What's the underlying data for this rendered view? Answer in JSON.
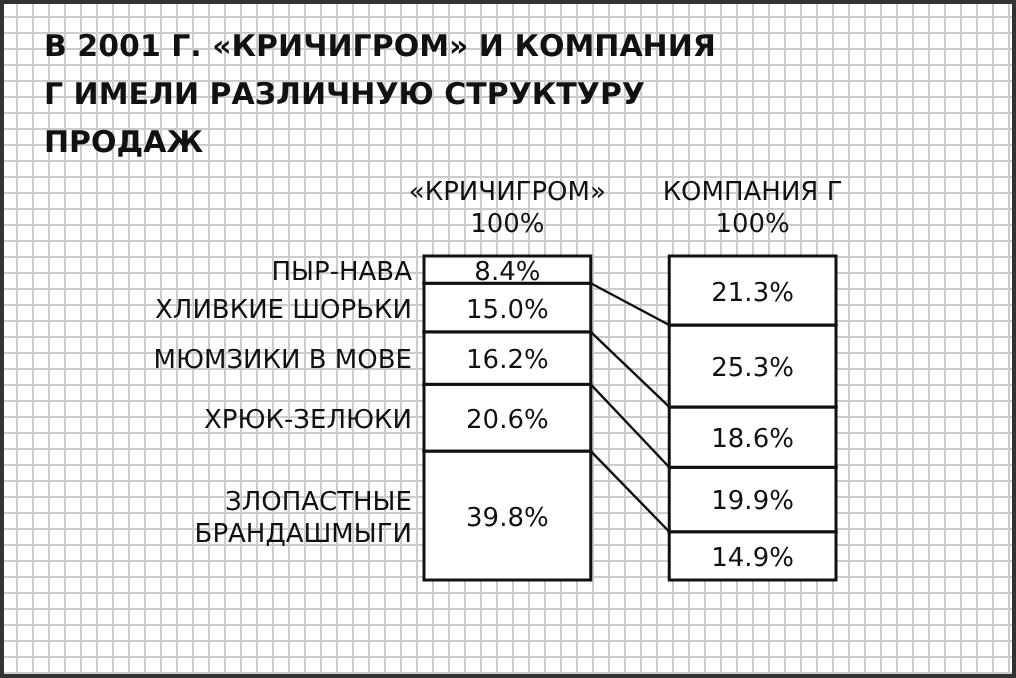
{
  "chart_data": {
    "type": "bar",
    "title": "В 2001 Г. «КРИЧИГРОМ» И КОМПАНИЯ Г ИМЕЛИ РАЗЛИЧНУЮ СТРУКТУРУ ПРОДАЖ",
    "categories": [
      "«КРИЧИГРОМ»",
      "КОМПАНИЯ Г"
    ],
    "stacked": true,
    "legend": "left",
    "totals": [
      "100%",
      "100%"
    ],
    "series": [
      {
        "name": "ЗЛОПАСТНЫЕ БРАНДАШМЫГИ",
        "color": "#ffffff",
        "values": [
          39.8,
          14.9
        ],
        "value_labels": [
          "39.8%",
          "14.9%"
        ]
      },
      {
        "name": "ХРЮК-ЗЕЛЮКИ",
        "color": "#ffffff",
        "values": [
          20.6,
          19.9
        ],
        "value_labels": [
          "20.6%",
          "19.9%"
        ]
      },
      {
        "name": "МЮМЗИКИ В МОВЕ",
        "color": "#ffffff",
        "values": [
          16.2,
          18.6
        ],
        "value_labels": [
          "16.2%",
          "18.6%"
        ]
      },
      {
        "name": "ХЛИВКИЕ ШОРЬКИ",
        "color": "#ffffff",
        "values": [
          15.0,
          25.3
        ],
        "value_labels": [
          "15.0%",
          "25.3%"
        ]
      },
      {
        "name": "ПЫР-НАВА",
        "color": "#ffffff",
        "values": [
          8.4,
          21.3
        ],
        "value_labels": [
          "8.4%",
          "21.3%"
        ]
      }
    ]
  }
}
